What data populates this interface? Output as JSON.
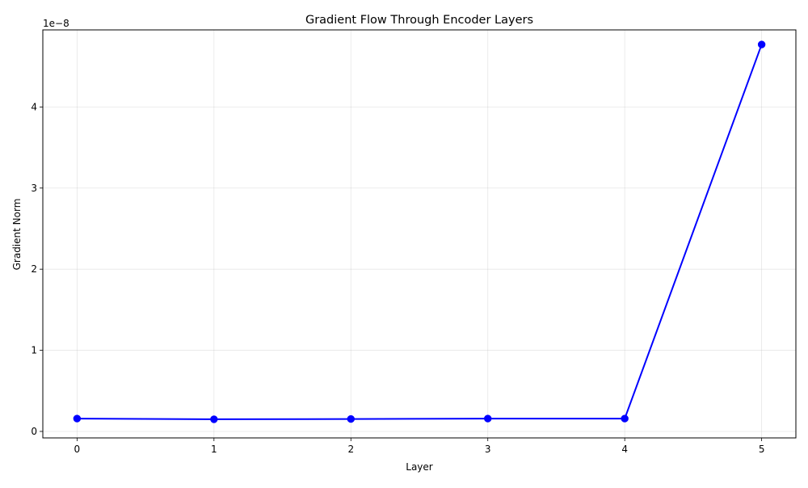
{
  "chart_data": {
    "type": "line",
    "title": "Gradient Flow Through Encoder Layers",
    "xlabel": "Layer",
    "ylabel": "Gradient Norm",
    "y_offset_text": "1e−8",
    "x": [
      0,
      1,
      2,
      3,
      4,
      5
    ],
    "series": [
      {
        "values": [
          1.58e-09,
          1.5e-09,
          1.53e-09,
          1.58e-09,
          1.58e-09,
          4.77e-08
        ],
        "color": "#0000ff",
        "marker": "circle"
      }
    ],
    "xlim": [
      -0.25,
      5.25
    ],
    "ylim": [
      -8e-10,
      4.95e-08
    ],
    "x_ticks": [
      0,
      1,
      2,
      3,
      4,
      5
    ],
    "x_tick_labels": [
      "0",
      "1",
      "2",
      "3",
      "4",
      "5"
    ],
    "y_ticks": [
      0,
      1e-08,
      2e-08,
      3e-08,
      4e-08
    ],
    "y_tick_labels": [
      "0",
      "1",
      "2",
      "3",
      "4"
    ],
    "grid": true
  }
}
